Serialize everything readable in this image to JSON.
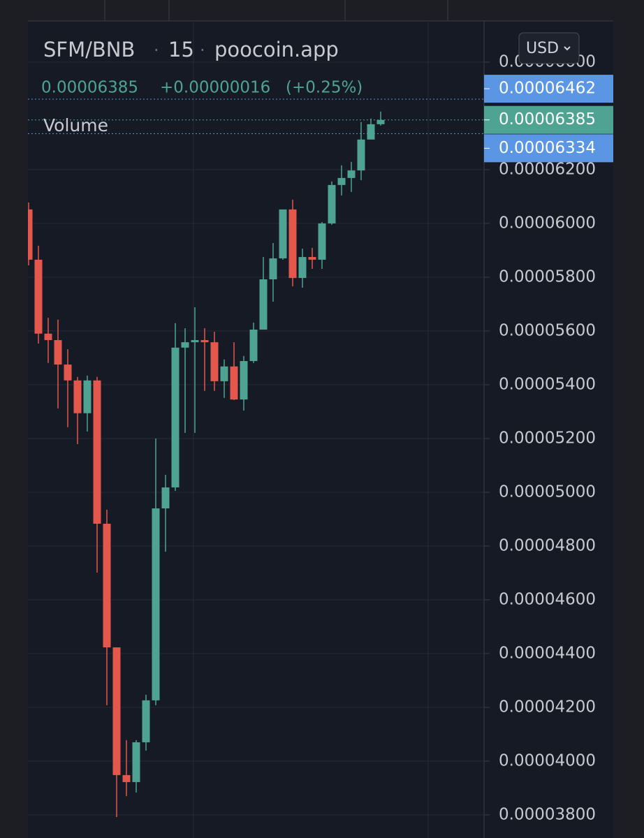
{
  "chart_data": {
    "type": "candlestick",
    "symbol": "SFM/BNB",
    "interval": "15",
    "source": "poocoin.app",
    "legend": {
      "last": "0.00006385",
      "change": "+0.00000016",
      "change_pct": "(+0.25%)"
    },
    "volume_label": "Volume",
    "currency": "USD",
    "up_color": "#4fa393",
    "down_color": "#e4574c",
    "categories": [
      null,
      null,
      null,
      null,
      null,
      null,
      null,
      null,
      null,
      null,
      null,
      null,
      null,
      null,
      null,
      null,
      null,
      null,
      null,
      null,
      null,
      null,
      null,
      null,
      null,
      null,
      null,
      null,
      null,
      null,
      null,
      null,
      null,
      null,
      null,
      null,
      null
    ],
    "open": [
      6.052e-05,
      5.865e-05,
      5.59e-05,
      5.566e-05,
      5.475e-05,
      5.416e-05,
      5.294e-05,
      5.416e-05,
      4.883e-05,
      4.423e-05,
      3.948e-05,
      3.922e-05,
      4.07e-05,
      4.226e-05,
      4.94e-05,
      5.018e-05,
      5.538e-05,
      5.558e-05,
      5.566e-05,
      5.558e-05,
      5.413e-05,
      5.468e-05,
      5.345e-05,
      5.488e-05,
      5.605e-05,
      5.792e-05,
      5.87e-05,
      6.052e-05,
      5.797e-05,
      5.875e-05,
      5.865e-05,
      6e-05,
      6.143e-05,
      6.169e-05,
      6.197e-05,
      6.312e-05,
      6.369e-05
    ],
    "high": [
      6.078e-05,
      5.917e-05,
      5.649e-05,
      5.642e-05,
      5.532e-05,
      5.429e-05,
      5.434e-05,
      5.429e-05,
      4.935e-05,
      4.423e-05,
      4.078e-05,
      4.078e-05,
      4.247e-05,
      5.2e-05,
      5.065e-05,
      5.629e-05,
      5.61e-05,
      5.688e-05,
      5.61e-05,
      5.597e-05,
      5.494e-05,
      5.558e-05,
      5.507e-05,
      5.631e-05,
      5.875e-05,
      5.927e-05,
      6.052e-05,
      6.088e-05,
      5.906e-05,
      5.909e-05,
      6.005e-05,
      6.156e-05,
      6.216e-05,
      6.229e-05,
      6.377e-05,
      6.39e-05,
      6.416e-05
    ],
    "low": [
      5.844e-05,
      5.553e-05,
      5.481e-05,
      5.312e-05,
      5.242e-05,
      5.179e-05,
      5.226e-05,
      4.701e-05,
      4.208e-05,
      3.792e-05,
      3.87e-05,
      3.883e-05,
      4.039e-05,
      4.208e-05,
      4.779e-05,
      5.005e-05,
      5.221e-05,
      5.221e-05,
      5.377e-05,
      5.377e-05,
      5.351e-05,
      5.343e-05,
      5.304e-05,
      5.481e-05,
      5.605e-05,
      5.709e-05,
      5.865e-05,
      5.766e-05,
      5.761e-05,
      5.831e-05,
      5.831e-05,
      5.995e-05,
      6.104e-05,
      6.117e-05,
      6.161e-05,
      6.312e-05,
      6.364e-05
    ],
    "close": [
      5.865e-05,
      5.59e-05,
      5.566e-05,
      5.475e-05,
      5.416e-05,
      5.294e-05,
      5.416e-05,
      4.883e-05,
      4.423e-05,
      3.948e-05,
      3.922e-05,
      4.07e-05,
      4.226e-05,
      4.94e-05,
      5.018e-05,
      5.538e-05,
      5.558e-05,
      5.566e-05,
      5.558e-05,
      5.413e-05,
      5.468e-05,
      5.345e-05,
      5.488e-05,
      5.605e-05,
      5.792e-05,
      5.87e-05,
      6.052e-05,
      5.797e-05,
      5.875e-05,
      5.865e-05,
      6e-05,
      6.143e-05,
      6.169e-05,
      6.197e-05,
      6.312e-05,
      6.369e-05,
      6.385e-05
    ],
    "ylim": [
      3.714e-05,
      6.831e-05
    ],
    "yticks": [
      {
        "value": 3.8e-05,
        "label": "0.00003800"
      },
      {
        "value": 4e-05,
        "label": "0.00004000"
      },
      {
        "value": 4.2e-05,
        "label": "0.00004200"
      },
      {
        "value": 4.4e-05,
        "label": "0.00004400"
      },
      {
        "value": 4.6e-05,
        "label": "0.00004600"
      },
      {
        "value": 4.8e-05,
        "label": "0.00004800"
      },
      {
        "value": 5e-05,
        "label": "0.00005000"
      },
      {
        "value": 5.2e-05,
        "label": "0.00005200"
      },
      {
        "value": 5.4e-05,
        "label": "0.00005400"
      },
      {
        "value": 5.6e-05,
        "label": "0.00005600"
      },
      {
        "value": 5.8e-05,
        "label": "0.00005800"
      },
      {
        "value": 6e-05,
        "label": "0.00006000"
      },
      {
        "value": 6.2e-05,
        "label": "0.00006200"
      },
      {
        "value": 6.6e-05,
        "label": "0.00006600"
      }
    ],
    "grid": true,
    "price_lines": [
      {
        "value": 6.462e-05,
        "color": "#5a96e3"
      },
      {
        "value": 6.385e-05,
        "color": "#4fa393"
      },
      {
        "value": 6.334e-05,
        "color": "#5a96e3"
      }
    ]
  }
}
